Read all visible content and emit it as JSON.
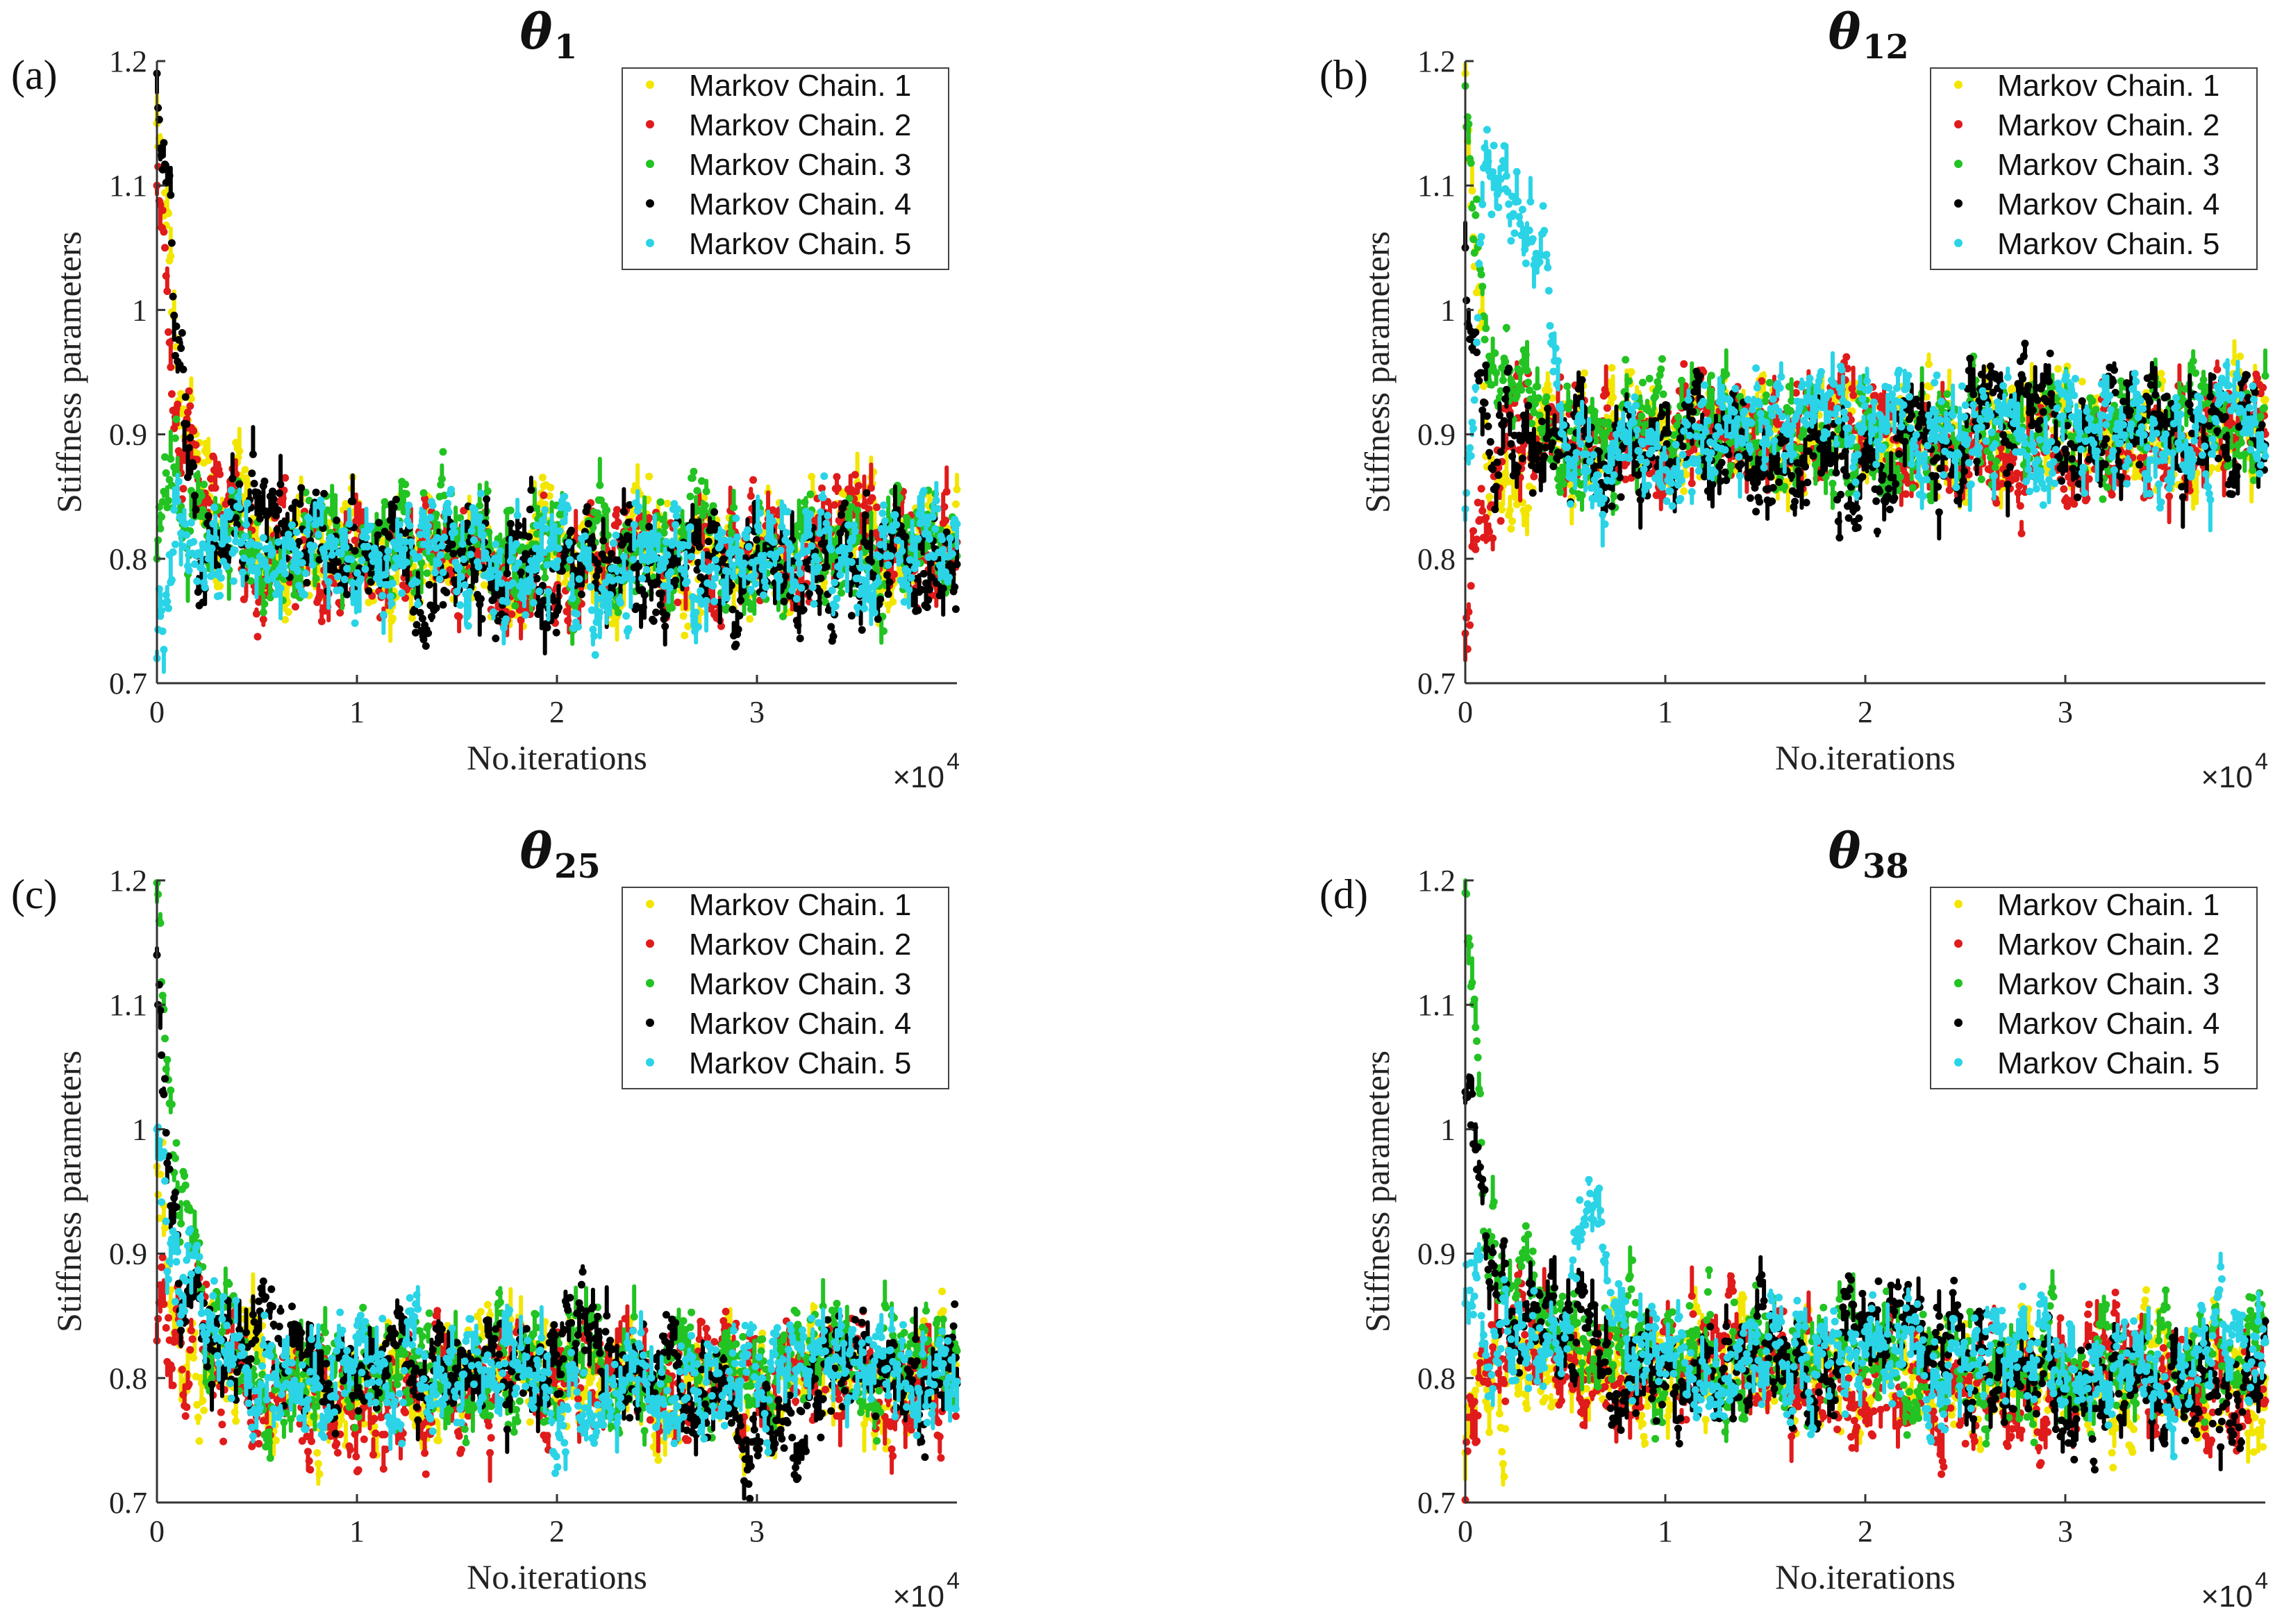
{
  "figure": {
    "common": {
      "xlabel": "No.iterations",
      "ylabel": "Stiffness parameters",
      "x_multiplier_base": "×10",
      "x_multiplier_exp": "4",
      "xlim": [
        0,
        40000
      ],
      "ylim": [
        0.7,
        1.2
      ],
      "x_ticks": [
        0,
        10000,
        20000,
        30000
      ],
      "x_tick_labels": [
        "0",
        "1",
        "2",
        "3"
      ],
      "y_ticks": [
        0.7,
        0.8,
        0.9,
        1.0,
        1.1,
        1.2
      ],
      "y_tick_labels": [
        "0.7",
        "0.8",
        "0.9",
        "1",
        "1.1",
        "1.2"
      ]
    },
    "series_colors": [
      "#f2e600",
      "#e01b1b",
      "#22c322",
      "#000000",
      "#2ad4e6"
    ],
    "legend": [
      "Markov Chain. 1",
      "Markov Chain. 2",
      "Markov Chain. 3",
      "Markov Chain. 4",
      "Markov Chain. 5"
    ]
  },
  "chart_data": [
    {
      "type": "scatter",
      "panel": "(a)",
      "title": "θ",
      "title_sub": "1",
      "xlabel": "No.iterations",
      "ylabel": "Stiffness parameters",
      "xlim": [
        0,
        40000
      ],
      "ylim": [
        0.7,
        1.2
      ],
      "series": [
        {
          "name": "Markov Chain. 1",
          "start": 1.15,
          "x": [
            0,
            1000,
            2000,
            5000,
            10000,
            15000,
            20000,
            25000,
            30000,
            35000,
            40000
          ],
          "values": [
            1.15,
            0.93,
            0.86,
            0.81,
            0.8,
            0.81,
            0.8,
            0.81,
            0.8,
            0.81,
            0.8
          ]
        },
        {
          "name": "Markov Chain. 2",
          "start": 1.1,
          "x": [
            0,
            1000,
            2000,
            5000,
            10000,
            15000,
            20000,
            25000,
            30000,
            35000,
            40000
          ],
          "values": [
            1.1,
            0.9,
            0.84,
            0.8,
            0.8,
            0.8,
            0.8,
            0.8,
            0.8,
            0.82,
            0.8
          ]
        },
        {
          "name": "Markov Chain. 3",
          "start": 0.8,
          "x": [
            0,
            1000,
            2000,
            5000,
            10000,
            15000,
            20000,
            25000,
            30000,
            35000,
            40000
          ],
          "values": [
            0.8,
            0.86,
            0.84,
            0.81,
            0.8,
            0.81,
            0.8,
            0.8,
            0.8,
            0.81,
            0.81
          ]
        },
        {
          "name": "Markov Chain. 4",
          "start": 1.19,
          "x": [
            0,
            1000,
            2000,
            5000,
            10000,
            15000,
            20000,
            25000,
            30000,
            35000,
            40000
          ],
          "values": [
            1.19,
            0.98,
            0.82,
            0.83,
            0.8,
            0.8,
            0.79,
            0.79,
            0.8,
            0.8,
            0.8
          ]
        },
        {
          "name": "Markov Chain. 5",
          "start": 0.72,
          "x": [
            0,
            1000,
            2000,
            5000,
            10000,
            15000,
            20000,
            25000,
            30000,
            35000,
            40000
          ],
          "values": [
            0.72,
            0.82,
            0.8,
            0.8,
            0.8,
            0.81,
            0.8,
            0.8,
            0.8,
            0.8,
            0.81
          ]
        }
      ]
    },
    {
      "type": "scatter",
      "panel": "(b)",
      "title": "θ",
      "title_sub": "12",
      "xlabel": "No.iterations",
      "ylabel": "Stiffness parameters",
      "xlim": [
        0,
        40000
      ],
      "ylim": [
        0.7,
        1.2
      ],
      "series": [
        {
          "name": "Markov Chain. 1",
          "start": 1.19,
          "x": [
            0,
            1000,
            2000,
            5000,
            10000,
            15000,
            20000,
            25000,
            30000,
            35000,
            40000
          ],
          "values": [
            1.19,
            0.92,
            0.88,
            0.9,
            0.9,
            0.91,
            0.9,
            0.9,
            0.91,
            0.9,
            0.91
          ]
        },
        {
          "name": "Markov Chain. 2",
          "start": 0.74,
          "x": [
            0,
            1000,
            2000,
            5000,
            10000,
            15000,
            20000,
            25000,
            30000,
            35000,
            40000
          ],
          "values": [
            0.74,
            0.86,
            0.9,
            0.91,
            0.9,
            0.9,
            0.92,
            0.89,
            0.9,
            0.9,
            0.92
          ]
        },
        {
          "name": "Markov Chain. 3",
          "start": 1.18,
          "x": [
            0,
            1000,
            2000,
            5000,
            10000,
            15000,
            20000,
            25000,
            30000,
            35000,
            40000
          ],
          "values": [
            1.18,
            0.98,
            0.93,
            0.9,
            0.91,
            0.91,
            0.9,
            0.91,
            0.9,
            0.91,
            0.9
          ]
        },
        {
          "name": "Markov Chain. 4",
          "start": 1.05,
          "x": [
            0,
            1000,
            2000,
            5000,
            10000,
            15000,
            20000,
            25000,
            30000,
            35000,
            40000
          ],
          "values": [
            1.05,
            0.95,
            0.9,
            0.88,
            0.89,
            0.88,
            0.87,
            0.9,
            0.91,
            0.9,
            0.91
          ]
        },
        {
          "name": "Markov Chain. 5",
          "start": 0.84,
          "x": [
            0,
            1000,
            2000,
            4000,
            5000,
            10000,
            15000,
            20000,
            25000,
            30000,
            35000,
            40000
          ],
          "values": [
            0.84,
            1.13,
            1.12,
            1.05,
            0.89,
            0.9,
            0.9,
            0.91,
            0.9,
            0.9,
            0.89,
            0.9
          ]
        }
      ]
    },
    {
      "type": "scatter",
      "panel": "(c)",
      "title": "θ",
      "title_sub": "25",
      "xlabel": "No.iterations",
      "ylabel": "Stiffness parameters",
      "xlim": [
        0,
        40000
      ],
      "ylim": [
        0.7,
        1.2
      ],
      "series": [
        {
          "name": "Markov Chain. 1",
          "start": 0.97,
          "x": [
            0,
            1000,
            2000,
            5000,
            10000,
            15000,
            20000,
            25000,
            30000,
            35000,
            40000
          ],
          "values": [
            0.97,
            0.84,
            0.82,
            0.8,
            0.78,
            0.8,
            0.81,
            0.8,
            0.79,
            0.81,
            0.8
          ]
        },
        {
          "name": "Markov Chain. 2",
          "start": 0.83,
          "x": [
            0,
            1000,
            2000,
            5000,
            10000,
            15000,
            20000,
            25000,
            30000,
            35000,
            40000
          ],
          "values": [
            0.83,
            0.83,
            0.84,
            0.79,
            0.78,
            0.8,
            0.79,
            0.8,
            0.79,
            0.8,
            0.79
          ]
        },
        {
          "name": "Markov Chain. 3",
          "start": 1.2,
          "x": [
            0,
            1000,
            2000,
            5000,
            10000,
            15000,
            20000,
            25000,
            30000,
            35000,
            40000
          ],
          "values": [
            1.2,
            0.96,
            0.84,
            0.8,
            0.81,
            0.8,
            0.81,
            0.82,
            0.81,
            0.82,
            0.8
          ]
        },
        {
          "name": "Markov Chain. 4",
          "start": 1.14,
          "x": [
            0,
            1000,
            2000,
            5000,
            10000,
            15000,
            20000,
            25000,
            30000,
            35000,
            40000
          ],
          "values": [
            1.14,
            0.87,
            0.84,
            0.81,
            0.8,
            0.82,
            0.83,
            0.81,
            0.76,
            0.8,
            0.8
          ]
        },
        {
          "name": "Markov Chain. 5",
          "start": 1.0,
          "x": [
            0,
            1000,
            2000,
            5000,
            10000,
            15000,
            20000,
            25000,
            30000,
            35000,
            40000
          ],
          "values": [
            1.0,
            0.88,
            0.85,
            0.79,
            0.8,
            0.81,
            0.8,
            0.8,
            0.8,
            0.81,
            0.79
          ]
        }
      ]
    },
    {
      "type": "scatter",
      "panel": "(d)",
      "title": "θ",
      "title_sub": "38",
      "xlabel": "No.iterations",
      "ylabel": "Stiffness parameters",
      "xlim": [
        0,
        40000
      ],
      "ylim": [
        0.7,
        1.2
      ],
      "series": [
        {
          "name": "Markov Chain. 1",
          "start": 0.74,
          "x": [
            0,
            1000,
            2000,
            5000,
            10000,
            15000,
            20000,
            25000,
            30000,
            35000,
            40000
          ],
          "values": [
            0.74,
            0.8,
            0.79,
            0.8,
            0.81,
            0.81,
            0.8,
            0.8,
            0.8,
            0.8,
            0.8
          ]
        },
        {
          "name": "Markov Chain. 2",
          "start": 0.7,
          "x": [
            0,
            1000,
            2000,
            5000,
            10000,
            15000,
            20000,
            25000,
            30000,
            35000,
            40000
          ],
          "values": [
            0.7,
            0.82,
            0.86,
            0.82,
            0.81,
            0.82,
            0.8,
            0.79,
            0.81,
            0.8,
            0.8
          ]
        },
        {
          "name": "Markov Chain. 3",
          "start": 1.19,
          "x": [
            0,
            1000,
            2000,
            5000,
            10000,
            15000,
            20000,
            25000,
            30000,
            35000,
            40000
          ],
          "values": [
            1.19,
            0.92,
            0.87,
            0.84,
            0.82,
            0.81,
            0.83,
            0.82,
            0.8,
            0.8,
            0.82
          ]
        },
        {
          "name": "Markov Chain. 4",
          "start": 1.03,
          "x": [
            0,
            1000,
            2000,
            5000,
            10000,
            15000,
            20000,
            25000,
            30000,
            35000,
            40000
          ],
          "values": [
            1.03,
            0.96,
            0.86,
            0.82,
            0.8,
            0.81,
            0.83,
            0.82,
            0.79,
            0.8,
            0.79
          ]
        },
        {
          "name": "Markov Chain. 5",
          "start": 0.86,
          "x": [
            0,
            1000,
            2000,
            5000,
            6500,
            8000,
            10000,
            15000,
            20000,
            25000,
            30000,
            35000,
            40000
          ],
          "values": [
            0.86,
            0.84,
            0.83,
            0.84,
            0.96,
            0.84,
            0.82,
            0.81,
            0.81,
            0.82,
            0.81,
            0.81,
            0.82
          ]
        }
      ]
    }
  ]
}
